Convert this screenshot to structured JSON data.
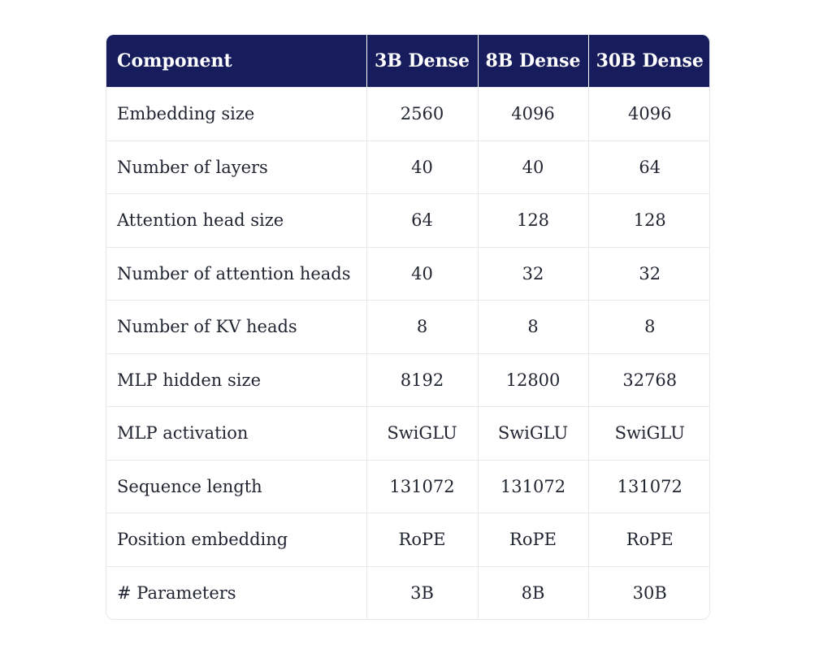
{
  "table": {
    "headers": [
      "Component",
      "3B Dense",
      "8B Dense",
      "30B Dense"
    ],
    "rows": [
      [
        "Embedding size",
        "2560",
        "4096",
        "4096"
      ],
      [
        "Number of layers",
        "40",
        "40",
        "64"
      ],
      [
        "Attention head size",
        "64",
        "128",
        "128"
      ],
      [
        "Number of attention heads",
        "40",
        "32",
        "32"
      ],
      [
        "Number of KV heads",
        "8",
        "8",
        "8"
      ],
      [
        "MLP hidden size",
        "8192",
        "12800",
        "32768"
      ],
      [
        "MLP activation",
        "SwiGLU",
        "SwiGLU",
        "SwiGLU"
      ],
      [
        "Sequence length",
        "131072",
        "131072",
        "131072"
      ],
      [
        "Position embedding",
        "RoPE",
        "RoPE",
        "RoPE"
      ],
      [
        "# Parameters",
        "3B",
        "8B",
        "30B"
      ]
    ]
  },
  "colors": {
    "header_background": "#171c5c",
    "header_text": "#ffffff",
    "border": "#e7e9ec"
  }
}
